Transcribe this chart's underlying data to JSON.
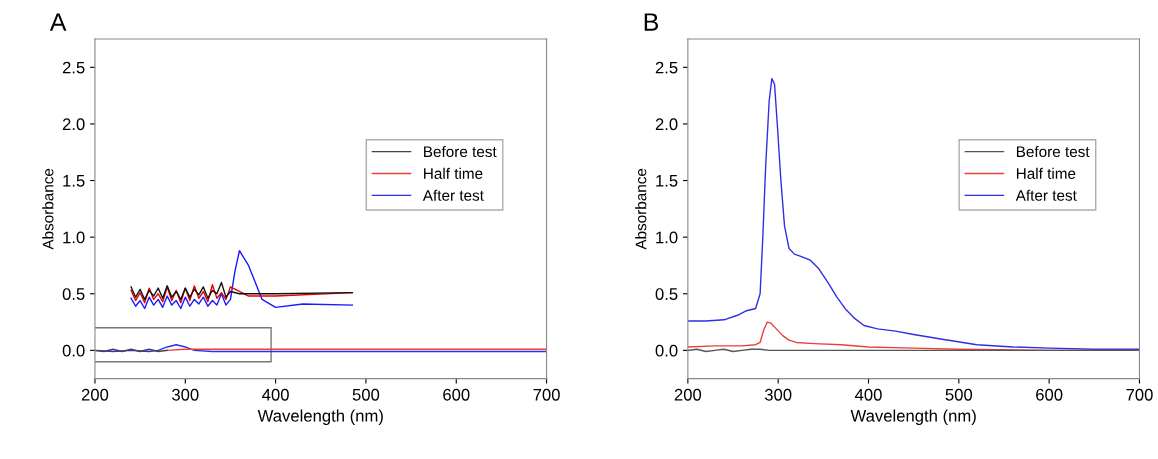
{
  "chart_data": [
    {
      "type": "line",
      "title": "A",
      "xlabel": "Wavelength (nm)",
      "ylabel": "Absorbance",
      "xlim": [
        200,
        700
      ],
      "ylim": [
        -0.25,
        2.75
      ],
      "xticks": [
        200,
        300,
        400,
        500,
        600,
        700
      ],
      "yticks": [
        {
          "value": 0,
          "label": "0.0"
        },
        0.5,
        {
          "value": 1,
          "label": "1.0"
        },
        1.5,
        {
          "value": 2,
          "label": "2.0"
        },
        2.5
      ],
      "legend": "right",
      "grid": false,
      "series": [
        {
          "name": "Before test",
          "color": "#444444",
          "x": [
            200,
            210,
            220,
            230,
            240,
            250,
            260,
            270,
            280
          ],
          "values": [
            0.0,
            -0.01,
            0.01,
            -0.01,
            0.01,
            -0.01,
            0.01,
            -0.01,
            0.0
          ]
        },
        {
          "name": "Half time",
          "color": "#e8413c",
          "x": [
            280,
            300,
            350,
            400,
            500,
            600,
            700
          ],
          "values": [
            0.0,
            0.01,
            0.01,
            0.01,
            0.01,
            0.01,
            0.01
          ]
        },
        {
          "name": "After test",
          "color": "#2e2ee6",
          "x": [
            200,
            220,
            240,
            260,
            270,
            280,
            290,
            300,
            310,
            330,
            400,
            500,
            600,
            700
          ],
          "values": [
            0.0,
            -0.01,
            0.0,
            -0.01,
            0.0,
            0.03,
            0.05,
            0.03,
            0.0,
            -0.01,
            -0.01,
            -0.01,
            -0.01,
            -0.01
          ]
        },
        {
          "color": "#111111",
          "x": [
            240,
            245,
            250,
            255,
            260,
            265,
            270,
            275,
            280,
            285,
            290,
            295,
            300,
            305,
            310,
            315,
            320,
            325,
            330,
            335,
            340,
            345,
            350,
            360,
            400,
            485
          ],
          "values": [
            0.56,
            0.47,
            0.54,
            0.45,
            0.53,
            0.48,
            0.55,
            0.46,
            0.57,
            0.47,
            0.52,
            0.45,
            0.55,
            0.47,
            0.54,
            0.49,
            0.56,
            0.46,
            0.53,
            0.5,
            0.6,
            0.47,
            0.52,
            0.5,
            0.5,
            0.51
          ]
        },
        {
          "color": "#e60000",
          "x": [
            240,
            245,
            250,
            255,
            260,
            265,
            270,
            275,
            280,
            285,
            290,
            295,
            300,
            305,
            310,
            315,
            320,
            325,
            330,
            335,
            340,
            345,
            350,
            360,
            370,
            400,
            485
          ],
          "values": [
            0.53,
            0.44,
            0.51,
            0.42,
            0.55,
            0.45,
            0.5,
            0.43,
            0.56,
            0.44,
            0.53,
            0.42,
            0.55,
            0.44,
            0.57,
            0.46,
            0.52,
            0.43,
            0.58,
            0.46,
            0.51,
            0.45,
            0.56,
            0.52,
            0.48,
            0.48,
            0.51
          ]
        },
        {
          "color": "#1a1aff",
          "x": [
            240,
            245,
            250,
            255,
            260,
            265,
            270,
            275,
            280,
            285,
            290,
            295,
            300,
            305,
            310,
            315,
            320,
            325,
            330,
            335,
            340,
            345,
            350,
            355,
            360,
            370,
            385,
            400,
            430,
            485
          ],
          "values": [
            0.46,
            0.39,
            0.44,
            0.37,
            0.47,
            0.4,
            0.45,
            0.38,
            0.48,
            0.4,
            0.44,
            0.37,
            0.47,
            0.39,
            0.45,
            0.41,
            0.47,
            0.39,
            0.44,
            0.4,
            0.5,
            0.4,
            0.45,
            0.7,
            0.88,
            0.75,
            0.45,
            0.38,
            0.41,
            0.4
          ]
        }
      ]
    },
    {
      "type": "line",
      "title": "B",
      "xlabel": "Wavelength (nm)",
      "ylabel": "Absorbance",
      "xlim": [
        200,
        700
      ],
      "ylim": [
        -0.25,
        2.75
      ],
      "xticks": [
        200,
        300,
        400,
        500,
        600,
        700
      ],
      "yticks": [
        {
          "value": 0,
          "label": "0.0"
        },
        0.5,
        {
          "value": 1,
          "label": "1.0"
        },
        1.5,
        {
          "value": 2,
          "label": "2.0"
        },
        2.5
      ],
      "legend": "right",
      "grid": false,
      "series": [
        {
          "name": "Before test",
          "color": "#555555",
          "x": [
            200,
            210,
            220,
            230,
            240,
            250,
            260,
            270,
            280,
            290,
            300,
            400,
            500,
            600,
            700
          ],
          "values": [
            0.0,
            0.01,
            -0.01,
            0.0,
            0.01,
            -0.01,
            0.0,
            0.01,
            0.01,
            0.0,
            0.0,
            0.0,
            0.0,
            0.0,
            0.0
          ]
        },
        {
          "name": "Half time",
          "color": "#e8413c",
          "x": [
            200,
            230,
            260,
            275,
            280,
            284,
            288,
            292,
            298,
            305,
            312,
            320,
            340,
            370,
            400,
            450,
            500,
            600,
            700
          ],
          "values": [
            0.03,
            0.04,
            0.04,
            0.05,
            0.07,
            0.18,
            0.25,
            0.24,
            0.19,
            0.13,
            0.09,
            0.07,
            0.06,
            0.05,
            0.03,
            0.02,
            0.01,
            0.0,
            0.0
          ]
        },
        {
          "name": "After test",
          "color": "#2e2ee6",
          "x": [
            200,
            220,
            240,
            255,
            265,
            275,
            280,
            283,
            286,
            290,
            293,
            296,
            299,
            303,
            307,
            312,
            318,
            325,
            335,
            345,
            355,
            365,
            375,
            385,
            395,
            410,
            430,
            450,
            480,
            520,
            560,
            600,
            650,
            700
          ],
          "values": [
            0.26,
            0.26,
            0.27,
            0.31,
            0.35,
            0.37,
            0.5,
            1.0,
            1.6,
            2.2,
            2.4,
            2.35,
            2.0,
            1.5,
            1.1,
            0.9,
            0.85,
            0.83,
            0.8,
            0.72,
            0.6,
            0.47,
            0.36,
            0.28,
            0.22,
            0.19,
            0.17,
            0.14,
            0.1,
            0.05,
            0.03,
            0.02,
            0.01,
            0.01
          ]
        }
      ]
    }
  ]
}
